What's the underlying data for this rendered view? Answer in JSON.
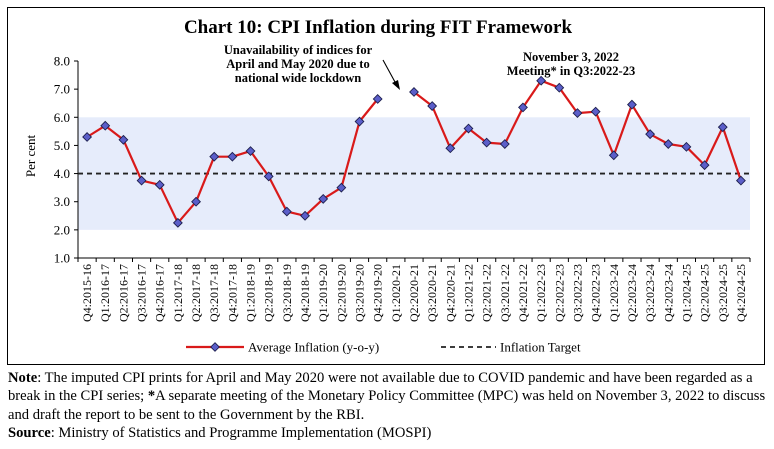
{
  "chart_data": {
    "type": "line",
    "title": "Chart 10: CPI Inflation during FIT Framework",
    "ylabel": "Per cent",
    "xlabel": "",
    "ylim": [
      1.0,
      8.0
    ],
    "yticks": [
      "1.0",
      "2.0",
      "3.0",
      "4.0",
      "5.0",
      "6.0",
      "7.0",
      "8.0"
    ],
    "tolerance_band": [
      2.0,
      6.0
    ],
    "target": 4.0,
    "categories": [
      "Q4:2015-16",
      "Q1:2016-17",
      "Q2:2016-17",
      "Q3:2016-17",
      "Q4:2016-17",
      "Q1:2017-18",
      "Q2:2017-18",
      "Q3:2017-18",
      "Q4:2017-18",
      "Q1:2018-19",
      "Q2:2018-19",
      "Q3:2018-19",
      "Q4:2018-19",
      "Q1:2019-20",
      "Q2:2019-20",
      "Q3:2019-20",
      "Q4:2019-20",
      "Q1:2020-21",
      "Q2:2020-21",
      "Q3:2020-21",
      "Q4:2020-21",
      "Q1:2021-22",
      "Q2:2021-22",
      "Q3:2021-22",
      "Q4:2021-22",
      "Q1:2022-23",
      "Q2:2022-23",
      "Q3:2022-23",
      "Q4:2022-23",
      "Q1:2023-24",
      "Q2:2023-24",
      "Q3:2023-24",
      "Q4:2023-24",
      "Q1:2024-25",
      "Q2:2024-25",
      "Q3:2024-25",
      "Q4:2024-25"
    ],
    "series": [
      {
        "name": "Average Inflation (y-o-y)",
        "values": [
          5.3,
          5.7,
          5.2,
          3.75,
          3.6,
          2.25,
          3.0,
          4.6,
          4.6,
          4.8,
          3.9,
          2.65,
          2.5,
          3.1,
          3.5,
          5.85,
          6.65,
          null,
          6.9,
          6.4,
          4.9,
          5.6,
          5.1,
          5.05,
          6.35,
          7.3,
          7.05,
          6.15,
          6.2,
          4.65,
          6.45,
          5.4,
          5.05,
          4.95,
          4.3,
          5.65,
          3.75
        ],
        "color": "#d91a1a",
        "marker_color": "#5b5ec9",
        "marker": "diamond"
      },
      {
        "name": "Inflation Target",
        "value": 4.0,
        "style": "dashed",
        "color": "#222222"
      }
    ],
    "band_color": "#e6ecfb",
    "annotations": [
      {
        "text_lines": [
          "Unavailability of indices for",
          "April and May 2020 due to",
          "national wide lockdown"
        ]
      },
      {
        "text_lines": [
          "November 3, 2022",
          "Meeting* in Q3:2022-23"
        ]
      }
    ],
    "legend": {
      "position": "bottom",
      "items": [
        "Average Inflation (y-o-y)",
        "Inflation Target"
      ]
    }
  },
  "notes": {
    "note_label": "Note",
    "note_text_1": ": The imputed CPI prints for April and May 2020 were not available due to COVID pandemic and have been regarded as a break in the CPI series; ",
    "note_star": "*",
    "note_text_2": "A separate meeting of the Monetary Policy Committee (MPC) was held on November 3, 2022 to discuss and draft the report to be sent to the Government by the RBI.",
    "source_label": "Source",
    "source_text": ": Ministry of Statistics and Programme Implementation (MOSPI)"
  }
}
